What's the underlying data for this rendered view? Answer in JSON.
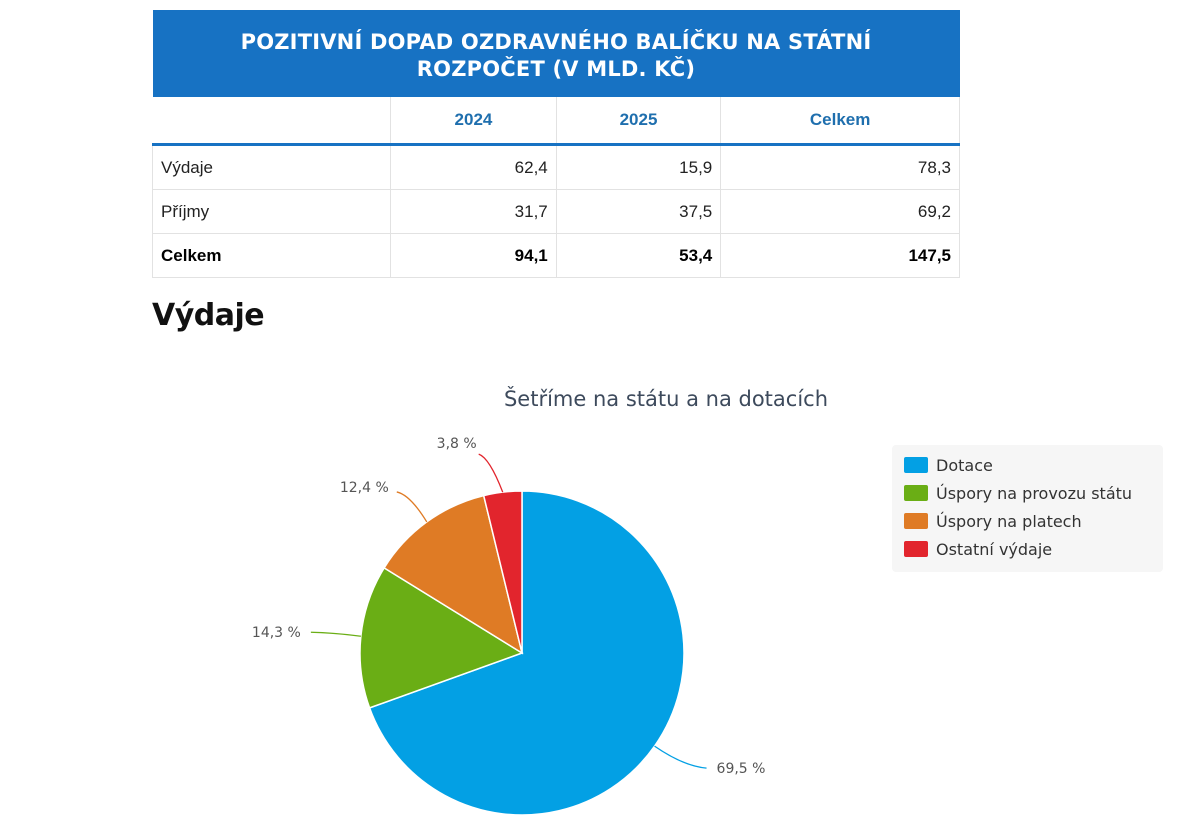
{
  "table": {
    "title": "POZITIVNÍ DOPAD OZDRAVNÉHO BALÍČKU NA STÁTNÍ ROZPOČET (V MLD. KČ)",
    "columns": [
      "",
      "2024",
      "2025",
      "Celkem"
    ],
    "rows": [
      {
        "label": "Výdaje",
        "values": [
          "62,4",
          "15,9",
          "78,3"
        ]
      },
      {
        "label": "Příjmy",
        "values": [
          "31,7",
          "37,5",
          "69,2"
        ]
      },
      {
        "label": "Celkem",
        "values": [
          "94,1",
          "53,4",
          "147,5"
        ]
      }
    ]
  },
  "section_heading": "Výdaje",
  "chart_data": {
    "type": "pie",
    "title": "Šetříme na státu a na dotacích",
    "legend_position": "right",
    "slices": [
      {
        "name": "Dotace",
        "value": 69.5,
        "label": "69,5 %",
        "color": "#03a0e4"
      },
      {
        "name": "Úspory na provozu státu",
        "value": 14.3,
        "label": "14,3 %",
        "color": "#6aae15"
      },
      {
        "name": "Úspory na platech",
        "value": 12.4,
        "label": "12,4 %",
        "color": "#df7b25"
      },
      {
        "name": "Ostatní výdaje",
        "value": 3.8,
        "label": "3,8 %",
        "color": "#e2252d"
      }
    ]
  }
}
